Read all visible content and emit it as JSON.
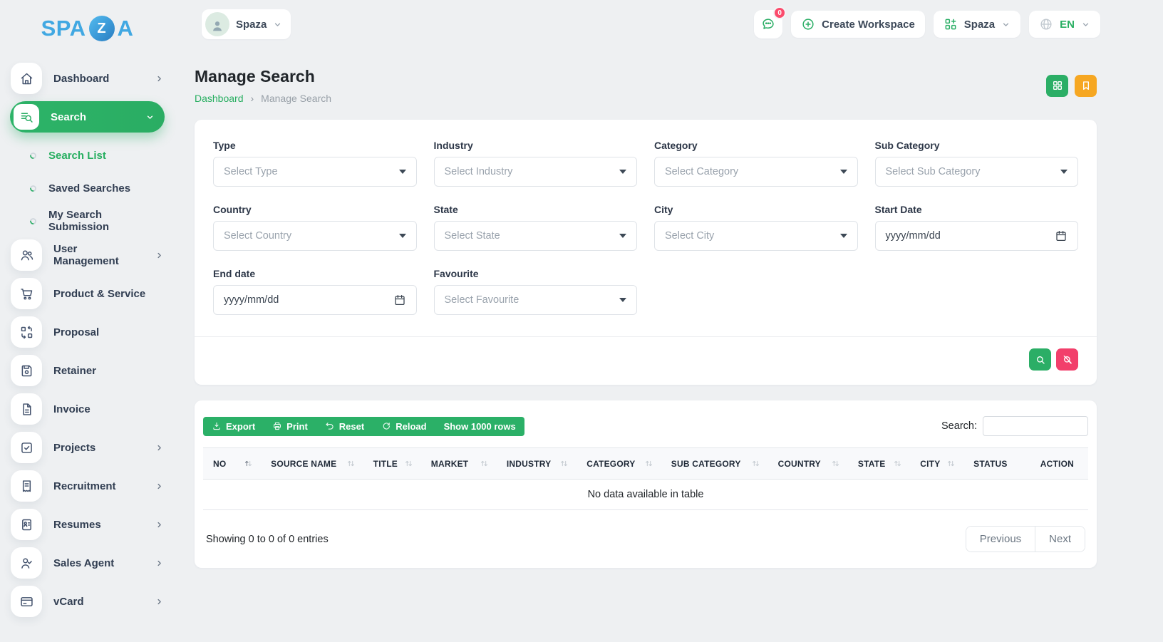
{
  "brand": {
    "text_before": "SPA",
    "logo_letter": "Z",
    "text_after": "A"
  },
  "header": {
    "workspace": {
      "label": "Spaza"
    },
    "notifications": {
      "badge": "0"
    },
    "create_workspace": {
      "label": "Create Workspace"
    },
    "workspace_switcher": {
      "label": "Spaza"
    },
    "language": {
      "label": "EN"
    }
  },
  "sidebar": {
    "items": [
      {
        "label": "Dashboard",
        "icon": "home-icon",
        "chevron": "right"
      },
      {
        "label": "Search",
        "icon": "search-list-icon",
        "chevron": "down",
        "active": true,
        "children": [
          {
            "label": "Search List",
            "active": true
          },
          {
            "label": "Saved Searches"
          },
          {
            "label": "My Search Submission"
          }
        ]
      },
      {
        "label": "User Management",
        "icon": "users-icon",
        "chevron": "right"
      },
      {
        "label": "Product & Service",
        "icon": "cart-icon"
      },
      {
        "label": "Proposal",
        "icon": "proposal-icon"
      },
      {
        "label": "Retainer",
        "icon": "retainer-icon"
      },
      {
        "label": "Invoice",
        "icon": "invoice-icon"
      },
      {
        "label": "Projects",
        "icon": "projects-icon",
        "chevron": "right"
      },
      {
        "label": "Recruitment",
        "icon": "recruitment-icon",
        "chevron": "right"
      },
      {
        "label": "Resumes",
        "icon": "resumes-icon",
        "chevron": "right"
      },
      {
        "label": "Sales Agent",
        "icon": "sales-agent-icon",
        "chevron": "right"
      },
      {
        "label": "vCard",
        "icon": "vcard-icon",
        "chevron": "right"
      }
    ]
  },
  "page": {
    "title": "Manage Search",
    "breadcrumb": {
      "parent": "Dashboard",
      "separator": "›",
      "current": "Manage Search"
    }
  },
  "filters": {
    "fields": [
      {
        "label": "Type",
        "placeholder": "Select Type",
        "type": "select"
      },
      {
        "label": "Industry",
        "placeholder": "Select Industry",
        "type": "select"
      },
      {
        "label": "Category",
        "placeholder": "Select Category",
        "type": "select"
      },
      {
        "label": "Sub Category",
        "placeholder": "Select Sub Category",
        "type": "select"
      },
      {
        "label": "Country",
        "placeholder": "Select Country",
        "type": "select"
      },
      {
        "label": "State",
        "placeholder": "Select State",
        "type": "select"
      },
      {
        "label": "City",
        "placeholder": "Select City",
        "type": "select"
      },
      {
        "label": "Start Date",
        "placeholder": "yyyy/mm/dd",
        "type": "date"
      },
      {
        "label": "End date",
        "placeholder": "yyyy/mm/dd",
        "type": "date"
      },
      {
        "label": "Favourite",
        "placeholder": "Select Favourite",
        "type": "select"
      }
    ]
  },
  "table": {
    "toolbar": [
      {
        "label": "Export",
        "icon": "download-icon"
      },
      {
        "label": "Print",
        "icon": "printer-icon"
      },
      {
        "label": "Reset",
        "icon": "undo-icon"
      },
      {
        "label": "Reload",
        "icon": "refresh-icon"
      },
      {
        "label": "Show 1000 rows",
        "icon": null
      }
    ],
    "search_label": "Search:",
    "columns": [
      {
        "label": "NO",
        "sortable": true,
        "sorted": "asc"
      },
      {
        "label": "SOURCE NAME",
        "sortable": true
      },
      {
        "label": "TITLE",
        "sortable": true
      },
      {
        "label": "MARKET",
        "sortable": true
      },
      {
        "label": "INDUSTRY",
        "sortable": true
      },
      {
        "label": "CATEGORY",
        "sortable": true
      },
      {
        "label": "SUB CATEGORY",
        "sortable": true
      },
      {
        "label": "COUNTRY",
        "sortable": true
      },
      {
        "label": "STATE",
        "sortable": true
      },
      {
        "label": "CITY",
        "sortable": true
      },
      {
        "label": "STATUS",
        "sortable": false
      },
      {
        "label": "ACTION",
        "sortable": false
      }
    ],
    "empty_text": "No data available in table",
    "summary": "Showing 0 to 0 of 0 entries",
    "pagination": {
      "previous": "Previous",
      "next": "Next"
    }
  },
  "colors": {
    "green": "#2bae66",
    "pink": "#f23f6b",
    "orange": "#f6a722",
    "logo_blue": "#41a8e2",
    "badge_pink": "#fb4b6c"
  }
}
